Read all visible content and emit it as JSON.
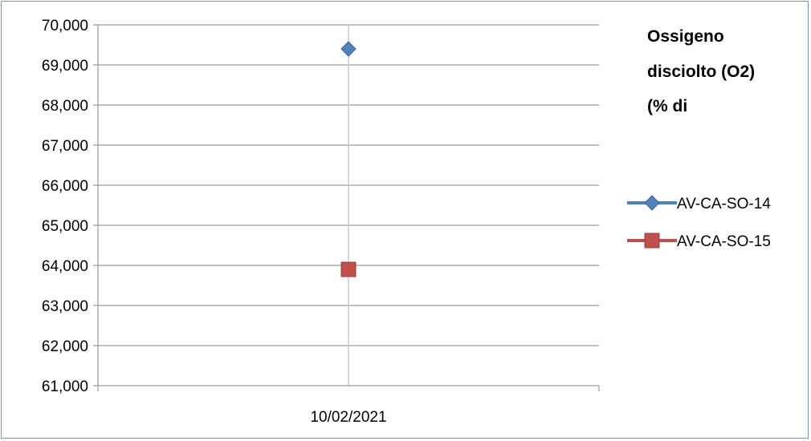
{
  "chart_data": {
    "type": "scatter",
    "title_lines": [
      "Ossigeno",
      "disciolto (O2)",
      "(% di"
    ],
    "categories": [
      "10/02/2021"
    ],
    "ylim": [
      61000,
      70000
    ],
    "y_ticks": [
      61000,
      62000,
      63000,
      64000,
      65000,
      66000,
      67000,
      68000,
      69000,
      70000
    ],
    "y_tick_labels": [
      "61,000",
      "62,000",
      "63,000",
      "64,000",
      "65,000",
      "66,000",
      "67,000",
      "68,000",
      "69,000",
      "70,000"
    ],
    "grid": "horizontal and vertical",
    "legend_position": "right",
    "series": [
      {
        "name": "AV-CA-SO-14",
        "values": [
          69400
        ],
        "color": "#4f81bd",
        "marker": "diamond"
      },
      {
        "name": "AV-CA-SO-15",
        "values": [
          63900
        ],
        "color": "#c0504d",
        "marker": "square"
      }
    ]
  }
}
